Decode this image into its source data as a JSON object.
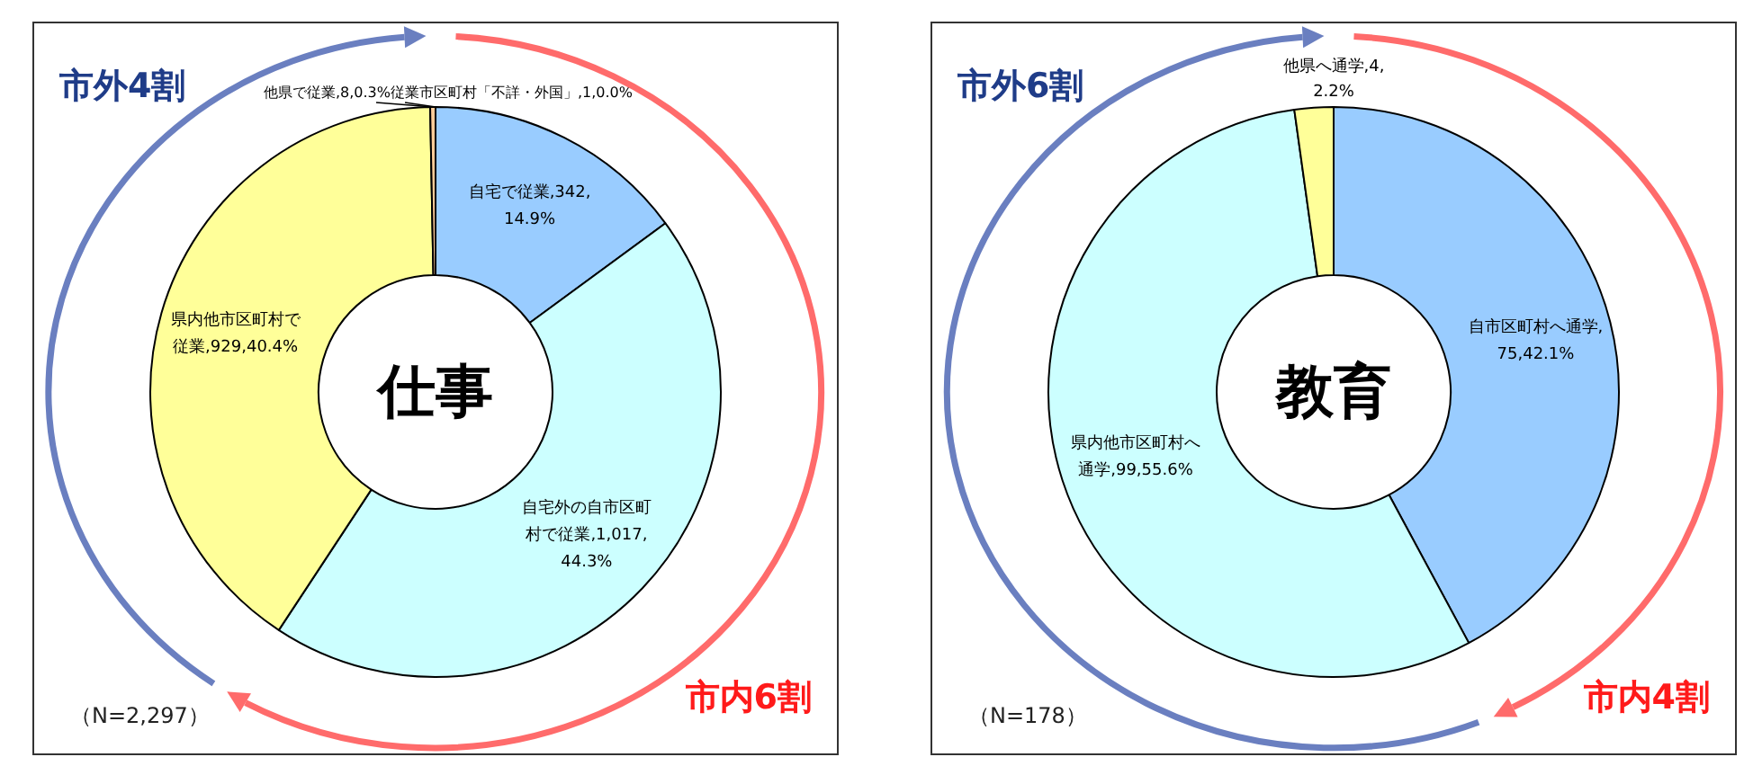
{
  "chart_data": [
    {
      "type": "donut",
      "title": "仕事",
      "categories": [
        "自宅で従業",
        "自宅外の自市区町村で従業",
        "県内他市区町村で従業",
        "他県で従業",
        "従業市区町村「不詳・外国」"
      ],
      "values": [
        14.9,
        44.3,
        40.4,
        0.3,
        0.0
      ],
      "colors": [
        "#99ccff",
        "#ccffff",
        "#ffff99",
        "#ffcc99",
        "#804000"
      ],
      "value_labels": [
        ",342,14.9%",
        ",1,017,44.3%",
        ",929,40.4%",
        ",8,0.3%",
        ",1,0.0%"
      ],
      "annotations": [
        "市外4割",
        "市内6割",
        "（N=2,297）"
      ],
      "legend": false
    },
    {
      "type": "donut",
      "title": "教育",
      "categories": [
        "自市区町村へ通学",
        "県内他市区町村へ通学",
        "他県へ通学"
      ],
      "values": [
        42.1,
        55.6,
        2.2
      ],
      "colors": [
        "#99ccff",
        "#ccffff",
        "#ffff99"
      ],
      "value_labels": [
        ",75,42.1%",
        ",99,55.6%",
        ",4,2.2%"
      ],
      "annotations": [
        "市外6割",
        "市内4割",
        "（N=178）"
      ],
      "legend": false
    }
  ]
}
